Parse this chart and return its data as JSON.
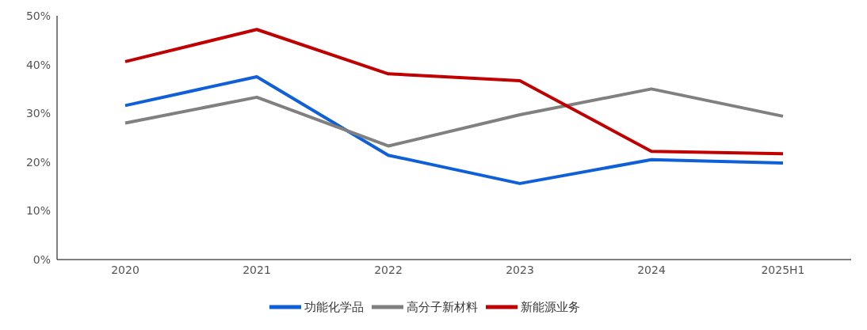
{
  "chart_data": {
    "type": "line",
    "categories": [
      "2020",
      "2021",
      "2022",
      "2023",
      "2024",
      "2025H1"
    ],
    "series": [
      {
        "name": "功能化学品",
        "color": "#0f5fd8",
        "values": [
          31.6,
          37.5,
          21.4,
          15.6,
          20.5,
          19.8
        ]
      },
      {
        "name": "高分子新材料",
        "color": "#808080",
        "values": [
          28.0,
          33.3,
          23.3,
          29.7,
          35.0,
          29.4
        ]
      },
      {
        "name": "新能源业务",
        "color": "#c00000",
        "values": [
          40.6,
          47.2,
          38.1,
          36.7,
          22.2,
          21.7
        ]
      }
    ],
    "ylim": [
      0,
      50
    ],
    "yticks": [
      {
        "value": 0,
        "label": "0%"
      },
      {
        "value": 10,
        "label": "10%"
      },
      {
        "value": 20,
        "label": "20%"
      },
      {
        "value": 30,
        "label": "30%"
      },
      {
        "value": 40,
        "label": "40%"
      },
      {
        "value": 50,
        "label": "50%"
      }
    ],
    "grid": false,
    "legend": "bottom",
    "marker": "none",
    "line_style": "solid"
  }
}
